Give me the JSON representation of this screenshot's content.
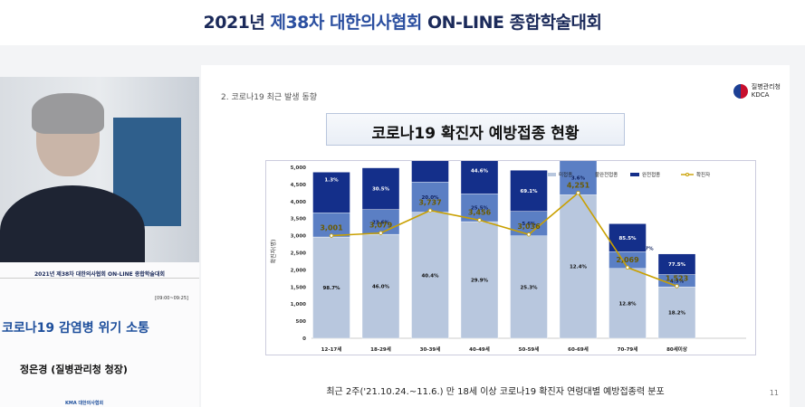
{
  "banner": {
    "pre": "2021년 ",
    "highlight": "제38차 대한의사협회",
    "post": " ON-LINE 종합학술대회"
  },
  "left": {
    "mini_banner": "2021년 제38차 대한의사협회 ON-LINE 종합학술대회",
    "time": "[09:00~09:25]",
    "talk_title": "코로나19 감염병 위기 소통",
    "speaker": "정은경 (질병관리청 청장)",
    "footer": "KMA 대한의사협회"
  },
  "slide": {
    "section": "2. 코로나19 최근 발생 동향",
    "logo_name": "질병관리청",
    "logo_abbr": "KDCA",
    "title": "코로나19 확진자 예방접종 현황",
    "caption": "최근 2주('21.10.24.~11.6.) 만 18세 이상 코로나19 확진자 연령대별 예방접종력 분포",
    "page_number": "11"
  },
  "colors": {
    "unvacc": "#b8c7de",
    "partial": "#5b7fc4",
    "full": "#142f8a",
    "line": "#c9a000"
  },
  "chart_data": {
    "type": "bar",
    "stacked": true,
    "ylabel": "확진자(명)",
    "ylim": [
      0,
      5000
    ],
    "yticks": [
      "0",
      "500",
      "1,000",
      "1,500",
      "2,000",
      "2,500",
      "3,000",
      "3,500",
      "4,000",
      "4,500",
      "5,000"
    ],
    "categories": [
      "12-17세",
      "18-29세",
      "30-39세",
      "40-49세",
      "50-59세",
      "60-69세",
      "70-79세",
      "80세이상"
    ],
    "totals": [
      3001,
      3079,
      3737,
      3456,
      3036,
      4251,
      2069,
      1523
    ],
    "total_labels": [
      "3,001",
      "3,079",
      "3,737",
      "3,456",
      "3,036",
      "4,251",
      "2,069",
      "1,523"
    ],
    "series": [
      {
        "name": "미접종",
        "percent": [
          98.7,
          46.0,
          40.4,
          29.9,
          25.3,
          12.4,
          12.8,
          18.2
        ],
        "labels": [
          "98.7%",
          "46.0%",
          "40.4%",
          "29.9%",
          "25.3%",
          "12.4%",
          "12.8%",
          "18.2%"
        ]
      },
      {
        "name": "불완전접종",
        "percent": [
          0,
          23.6,
          20.0,
          25.5,
          5.6,
          3.6,
          1.7,
          4.3
        ],
        "labels": [
          "",
          "23.6%",
          "20.0%",
          "25.5%",
          "5.6%",
          "3.6%",
          "1.7%",
          "4.3%"
        ]
      },
      {
        "name": "완전접종",
        "percent": [
          1.3,
          30.5,
          39.6,
          44.6,
          69.1,
          84.1,
          85.5,
          77.5
        ],
        "labels": [
          "1.3%",
          "30.5%",
          "39.6%",
          "44.6%",
          "69.1%",
          "84.1%",
          "85.5%",
          "77.5%"
        ]
      }
    ],
    "line_series": {
      "name": "확진자"
    },
    "legend": "top-right"
  }
}
